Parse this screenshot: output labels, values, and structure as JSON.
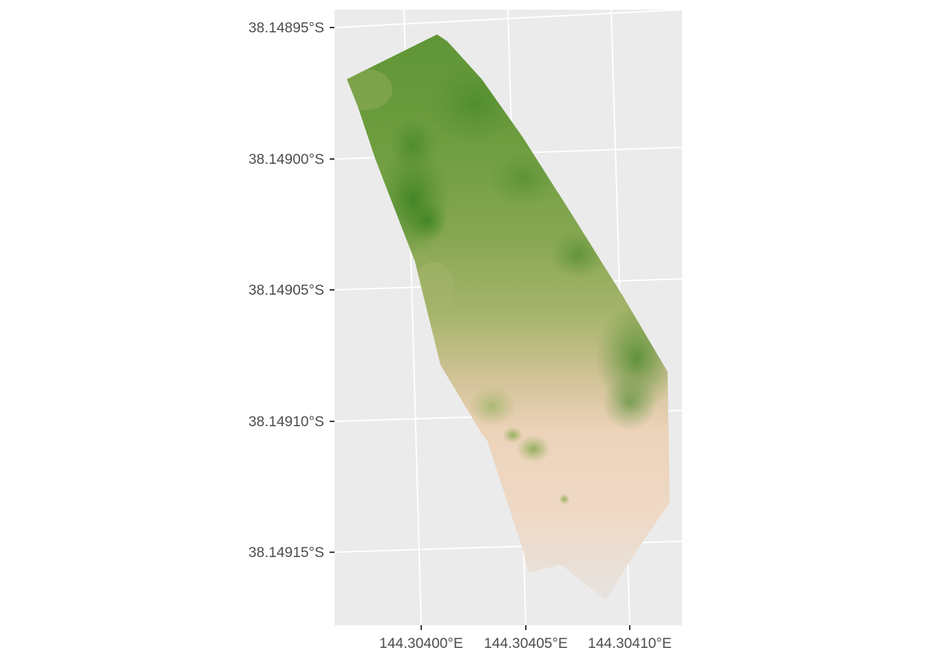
{
  "map": {
    "y_axis": {
      "tick_labels": [
        "38.14895°S",
        "38.14900°S",
        "38.14905°S",
        "38.14910°S",
        "38.14915°S"
      ]
    },
    "x_axis": {
      "tick_labels": [
        "144.30400°E",
        "144.30405°E",
        "144.30410°E"
      ]
    },
    "colors": {
      "panel_background": "#ebebeb",
      "gridline": "#ffffff",
      "tick_text": "#4d4d4d",
      "fill_high": "#4f8d2c",
      "fill_mid": "#a6b46a",
      "fill_low": "#efd6c0",
      "fill_lowest": "#e7e3df"
    }
  }
}
